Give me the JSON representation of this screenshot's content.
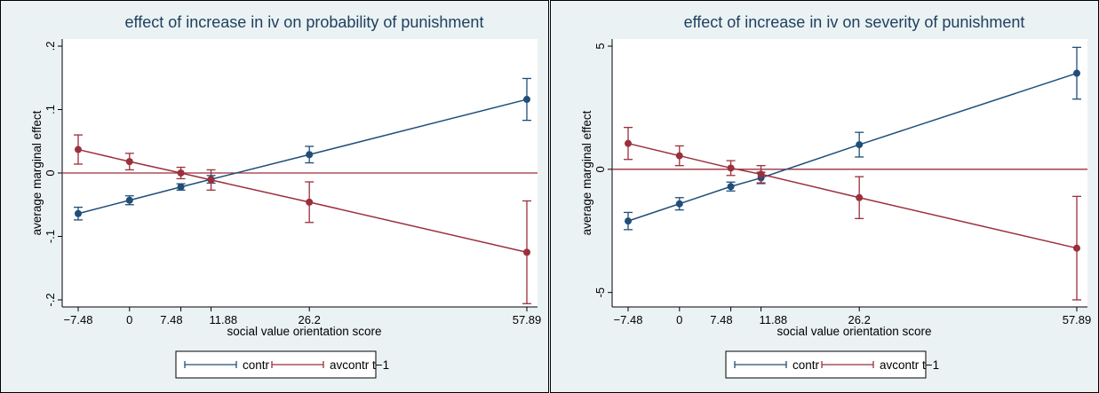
{
  "chart_data": [
    {
      "type": "line",
      "title": "effect of increase in iv on probability of punishment",
      "xlabel": "social value orientation score",
      "ylabel": "average marginal effect",
      "x": [
        -7.48,
        0,
        7.48,
        11.88,
        26.2,
        57.89
      ],
      "x_tick_labels": [
        "-7.48",
        "0",
        "7.48",
        "11.88",
        "26.2",
        "57.89"
      ],
      "y_ticks": [
        -0.2,
        -0.1,
        0,
        0.1,
        0.2
      ],
      "y_tick_labels": [
        "-.2",
        "-.1",
        "0",
        ".1",
        ".2"
      ],
      "ylim": [
        -0.2,
        0.2
      ],
      "reference_line_y": 0,
      "series": [
        {
          "name": "contr",
          "color": "#1f4e79",
          "values": [
            -0.064,
            -0.043,
            -0.022,
            -0.01,
            0.029,
            0.116
          ],
          "ci_low": [
            -0.074,
            -0.05,
            -0.027,
            -0.016,
            0.016,
            0.083
          ],
          "ci_high": [
            -0.054,
            -0.036,
            -0.017,
            -0.004,
            0.042,
            0.149
          ]
        },
        {
          "name": "avcontr t-1",
          "color": "#9b2f3c",
          "values": [
            0.037,
            0.018,
            0.0,
            -0.011,
            -0.046,
            -0.125
          ],
          "ci_low": [
            0.014,
            0.005,
            -0.009,
            -0.027,
            -0.078,
            -0.206
          ],
          "ci_high": [
            0.06,
            0.031,
            0.009,
            0.005,
            -0.014,
            -0.044
          ]
        }
      ],
      "legend_position": "bottom-center"
    },
    {
      "type": "line",
      "title": "effect of increase in iv on severity of punishment",
      "xlabel": "social value orientation score",
      "ylabel": "average marginal effect",
      "x": [
        -7.48,
        0,
        7.48,
        11.88,
        26.2,
        57.89
      ],
      "x_tick_labels": [
        "-7.48",
        "0",
        "7.48",
        "11.88",
        "26.2",
        "57.89"
      ],
      "y_ticks": [
        -5,
        0,
        5
      ],
      "y_tick_labels": [
        "-5",
        "0",
        "5"
      ],
      "ylim": [
        -5.3,
        5.0
      ],
      "reference_line_y": 0,
      "series": [
        {
          "name": "contr",
          "color": "#1f4e79",
          "values": [
            -2.1,
            -1.4,
            -0.7,
            -0.35,
            1.0,
            3.9
          ],
          "ci_low": [
            -2.45,
            -1.65,
            -0.88,
            -0.58,
            0.5,
            2.85
          ],
          "ci_high": [
            -1.75,
            -1.15,
            -0.52,
            -0.12,
            1.5,
            4.95
          ]
        },
        {
          "name": "avcontr t-1",
          "color": "#9b2f3c",
          "values": [
            1.05,
            0.55,
            0.05,
            -0.2,
            -1.15,
            -3.2
          ],
          "ci_low": [
            0.4,
            0.15,
            -0.25,
            -0.55,
            -2.0,
            -5.3
          ],
          "ci_high": [
            1.7,
            0.95,
            0.35,
            0.15,
            -0.3,
            -1.1
          ]
        }
      ],
      "legend_position": "bottom-center"
    }
  ]
}
